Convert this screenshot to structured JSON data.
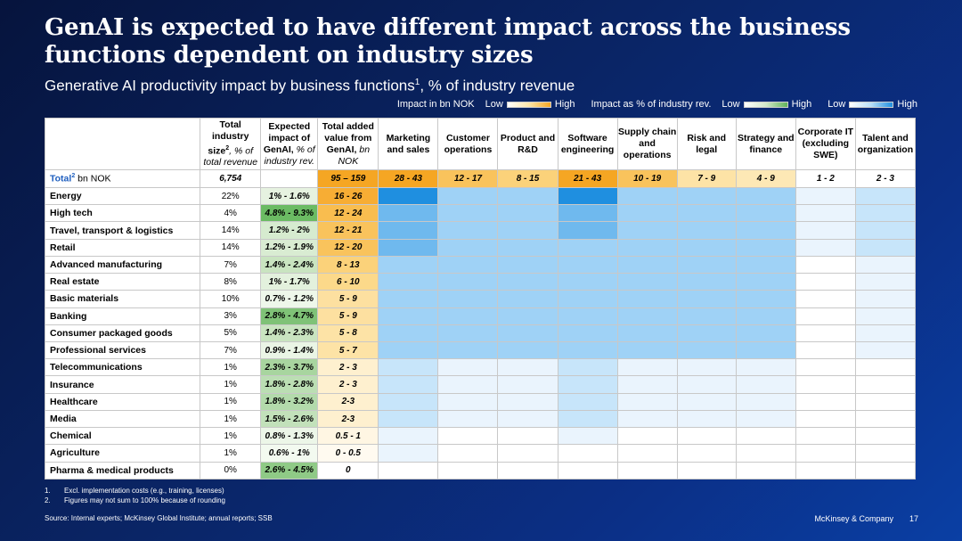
{
  "title": "GenAI is expected to have different impact across the business functions dependent on industry sizes",
  "subtitle": "Generative AI productivity impact by business functions",
  "subtitle_sup": "1",
  "subtitle_tail": ", % of industry revenue",
  "legend": {
    "impact_label": "Impact in bn NOK",
    "low1": "Low",
    "high1": "High",
    "pct_label": "Impact as % of industry rev.",
    "low2": "Low",
    "high2": "High",
    "low3": "Low",
    "high3": "High"
  },
  "headers": {
    "size_a": "Total industry size",
    "size_sup": "2",
    "size_b": ", % of total revenue",
    "impact_a": "Expected impact of GenAI,",
    "impact_b": " % of industry rev.",
    "added_a": "Total added value from GenAI,",
    "added_b": " bn NOK",
    "functions": [
      "Marketing and sales",
      "Customer operations",
      "Product and R&D",
      "Software engineering",
      "Supply chain and operations",
      "Risk and legal",
      "Strategy and finance",
      "Corporate IT (excluding SWE)",
      "Talent and organization"
    ]
  },
  "total": {
    "label": "Total",
    "sup": "2",
    "unit": " bn NOK",
    "size": "6,754",
    "added": "95 – 159",
    "functions": [
      "28 - 43",
      "12 - 17",
      "8 - 15",
      "21 - 43",
      "10 - 19",
      "7 - 9",
      "4 - 9",
      "1 - 2",
      "2 - 3"
    ]
  },
  "colors": {
    "orange_high": "#f5a623",
    "orange_low": "#fde8b5",
    "green_high": "#5fb35a",
    "blue_high": "#1f8fe0",
    "blue_low": "#eaf4fd"
  },
  "rows": [
    {
      "name": "Energy",
      "size": "22%",
      "impact": "1% - 1.6%",
      "added": "16 - 26"
    },
    {
      "name": "High tech",
      "size": "4%",
      "impact": "4.8% - 9.3%",
      "added": "12 - 24"
    },
    {
      "name": "Travel, transport & logistics",
      "size": "14%",
      "impact": "1.2% - 2%",
      "added": "12 - 21"
    },
    {
      "name": "Retail",
      "size": "14%",
      "impact": "1.2% - 1.9%",
      "added": "12 - 20"
    },
    {
      "name": "Advanced manufacturing",
      "size": "7%",
      "impact": "1.4% - 2.4%",
      "added": "8 - 13"
    },
    {
      "name": "Real estate",
      "size": "8%",
      "impact": "1% - 1.7%",
      "added": "6 - 10"
    },
    {
      "name": "Basic materials",
      "size": "10%",
      "impact": "0.7% - 1.2%",
      "added": "5 - 9"
    },
    {
      "name": "Banking",
      "size": "3%",
      "impact": "2.8% - 4.7%",
      "added": "5 - 9"
    },
    {
      "name": "Consumer packaged goods",
      "size": "5%",
      "impact": "1.4% - 2.3%",
      "added": "5 - 8"
    },
    {
      "name": "Professional services",
      "size": "7%",
      "impact": "0.9% - 1.4%",
      "added": "5 - 7"
    },
    {
      "name": "Telecommunications",
      "size": "1%",
      "impact": "2.3% - 3.7%",
      "added": "2 - 3"
    },
    {
      "name": "Insurance",
      "size": "1%",
      "impact": "1.8% - 2.8%",
      "added": "2 - 3"
    },
    {
      "name": "Healthcare",
      "size": "1%",
      "impact": "1.8% - 3.2%",
      "added": "2-3"
    },
    {
      "name": "Media",
      "size": "1%",
      "impact": "1.5% - 2.6%",
      "added": "2-3"
    },
    {
      "name": "Chemical",
      "size": "1%",
      "impact": "0.8% - 1.3%",
      "added": "0.5 - 1"
    },
    {
      "name": "Agriculture",
      "size": "1%",
      "impact": "0.6% - 1%",
      "added": "0 - 0.5"
    },
    {
      "name": "Pharma & medical products",
      "size": "0%",
      "impact": "2.6% - 4.5%",
      "added": "0"
    }
  ],
  "footnotes": [
    {
      "num": "1.",
      "text": "Excl. implementation costs (e.g., training, licenses)"
    },
    {
      "num": "2.",
      "text": "Figures may not sum to 100% because of rounding"
    }
  ],
  "source": "Source: Internal experts; McKinsey Global Institute; annual reports; SSB",
  "brand": "McKinsey & Company",
  "page_number": "17"
}
